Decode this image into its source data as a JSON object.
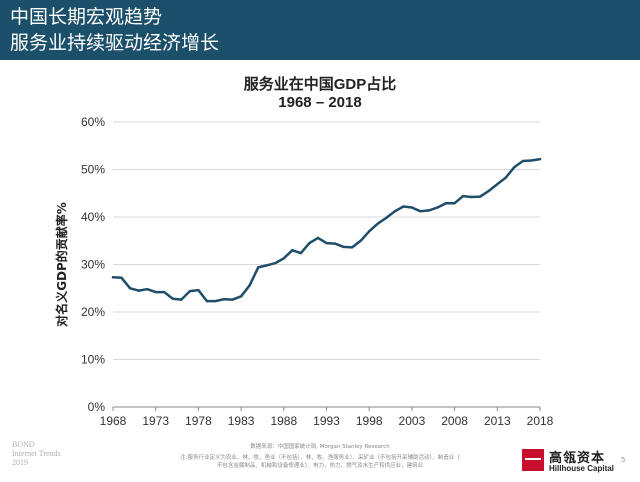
{
  "header": {
    "line1": "中国长期宏观趋势",
    "line2": "服务业持续驱动经济增长"
  },
  "colors": {
    "header_bg": "#1b4f6a",
    "series_line": "#1f4e6b",
    "grid": "#d9d9d9",
    "logo_red": "#c8102e"
  },
  "chart_data": {
    "type": "line",
    "title": "服务业在中国GDP占比",
    "subtitle": "1968 – 2018",
    "xlabel": "",
    "ylabel": "对名义GDP的贡献率%",
    "xlim": [
      1968,
      2018
    ],
    "ylim": [
      0,
      60
    ],
    "x_ticks": [
      "1968",
      "1973",
      "1978",
      "1983",
      "1988",
      "1993",
      "1998",
      "2003",
      "2008",
      "2013",
      "2018"
    ],
    "y_ticks": [
      "0%",
      "10%",
      "20%",
      "30%",
      "40%",
      "50%",
      "60%"
    ],
    "grid": "horizontal",
    "legend": "none",
    "series": [
      {
        "x": [
          1968,
          1969,
          1970,
          1971,
          1972,
          1973,
          1974,
          1975,
          1976,
          1977,
          1978,
          1979,
          1980,
          1981,
          1982,
          1983,
          1984,
          1985,
          1986,
          1987,
          1988,
          1989,
          1990,
          1991,
          1992,
          1993,
          1994,
          1995,
          1996,
          1997,
          1998,
          1999,
          2000,
          2001,
          2002,
          2003,
          2004,
          2005,
          2006,
          2007,
          2008,
          2009,
          2010,
          2011,
          2012,
          2013,
          2014,
          2015,
          2016,
          2017,
          2018
        ],
        "values": [
          27.3,
          27.2,
          25.0,
          24.5,
          24.8,
          24.2,
          24.2,
          22.8,
          22.6,
          24.4,
          24.6,
          22.3,
          22.3,
          22.7,
          22.6,
          23.3,
          25.6,
          29.4,
          29.8,
          30.3,
          31.3,
          33.0,
          32.4,
          34.5,
          35.6,
          34.5,
          34.4,
          33.7,
          33.6,
          35.0,
          37.0,
          38.6,
          39.8,
          41.2,
          42.2,
          42.0,
          41.2,
          41.4,
          42.0,
          42.9,
          42.9,
          44.4,
          44.2,
          44.3,
          45.5,
          46.9,
          48.3,
          50.5,
          51.8,
          51.9,
          52.2
        ]
      }
    ]
  },
  "footer": {
    "bond_line1": "BOND",
    "bond_line2": "Internet Trends",
    "bond_line3": "2019",
    "source_line1": "数据来源：中国国家统计局, Morgan Stanley Research",
    "source_line2": "注:服务行业定义为农业、林、牧、渔业（不包括）、林、牧、渔服务业）、采矿业（不包括开采辅助活动）、制造业（",
    "source_line3": "不包含金属制品、机械和设备修理业）、电力、热力、燃气及水生产和供应业，建筑业",
    "logo_cn": "高瓴资本",
    "logo_en": "Hillhouse Capital",
    "page_number": "5"
  }
}
